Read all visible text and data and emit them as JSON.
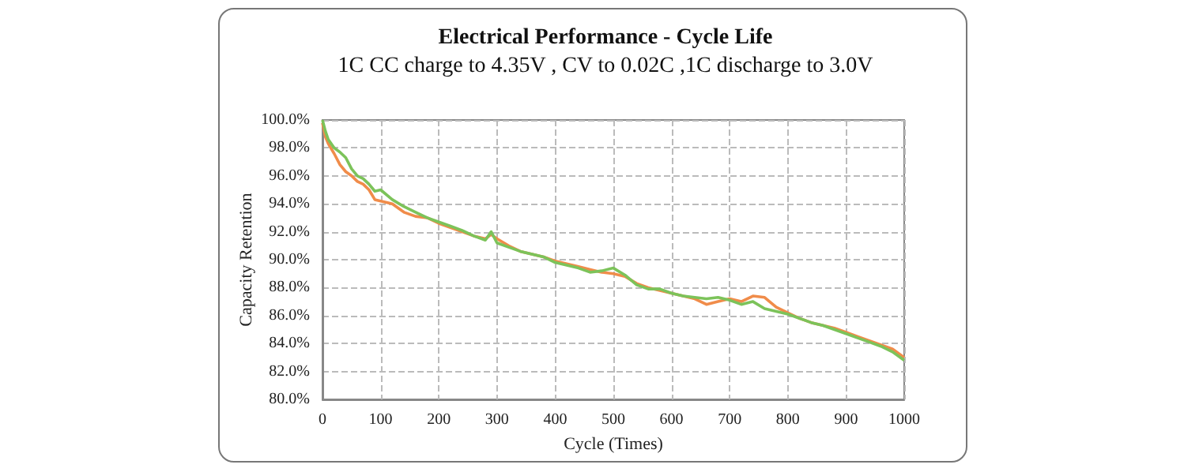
{
  "chart_data": {
    "type": "line",
    "title": "Electrical Performance - Cycle Life",
    "subtitle": "1C CC charge to 4.35V , CV to 0.02C ,1C discharge to 3.0V",
    "xlabel": "Cycle (Times)",
    "ylabel": "Capacity Retention",
    "x": [
      0,
      5,
      10,
      20,
      30,
      40,
      50,
      60,
      70,
      80,
      90,
      100,
      120,
      140,
      160,
      180,
      200,
      220,
      240,
      260,
      280,
      290,
      300,
      320,
      340,
      360,
      380,
      400,
      420,
      440,
      460,
      480,
      500,
      520,
      540,
      560,
      580,
      600,
      620,
      640,
      660,
      680,
      700,
      720,
      740,
      760,
      780,
      800,
      820,
      840,
      860,
      880,
      900,
      920,
      940,
      960,
      980,
      1000
    ],
    "series": [
      {
        "color": "#f08c4a",
        "values": [
          99.8,
          98.8,
          98.3,
          97.6,
          96.8,
          96.3,
          96.0,
          95.6,
          95.4,
          95.0,
          94.3,
          94.2,
          94.0,
          93.4,
          93.1,
          93.0,
          92.6,
          92.3,
          92.0,
          91.7,
          91.5,
          91.8,
          91.5,
          91.0,
          90.6,
          90.4,
          90.2,
          89.9,
          89.7,
          89.5,
          89.3,
          89.1,
          89.0,
          88.8,
          88.3,
          88.0,
          87.8,
          87.6,
          87.4,
          87.2,
          86.8,
          87.0,
          87.2,
          87.0,
          87.4,
          87.3,
          86.6,
          86.2,
          85.8,
          85.5,
          85.3,
          85.1,
          84.8,
          84.5,
          84.2,
          83.9,
          83.6,
          83.0
        ]
      },
      {
        "color": "#7cc35a",
        "values": [
          100.0,
          99.2,
          98.6,
          98.0,
          97.7,
          97.3,
          96.5,
          96.0,
          95.8,
          95.4,
          94.9,
          95.0,
          94.3,
          93.8,
          93.4,
          93.0,
          92.7,
          92.4,
          92.1,
          91.7,
          91.4,
          92.0,
          91.2,
          90.9,
          90.6,
          90.4,
          90.2,
          89.8,
          89.6,
          89.4,
          89.1,
          89.2,
          89.4,
          88.9,
          88.2,
          87.9,
          87.9,
          87.6,
          87.4,
          87.3,
          87.2,
          87.3,
          87.1,
          86.8,
          87.0,
          86.5,
          86.3,
          86.1,
          85.8,
          85.5,
          85.3,
          85.0,
          84.7,
          84.4,
          84.1,
          83.8,
          83.4,
          82.8
        ]
      }
    ],
    "xlim": [
      0,
      1000
    ],
    "xticks": [
      0,
      100,
      200,
      300,
      400,
      500,
      600,
      700,
      800,
      900,
      1000
    ],
    "ylim": [
      80,
      100
    ],
    "yticks": [
      {
        "value": 80,
        "label": "80.0%"
      },
      {
        "value": 82,
        "label": "82.0%"
      },
      {
        "value": 84,
        "label": "84.0%"
      },
      {
        "value": 86,
        "label": "86.0%"
      },
      {
        "value": 88,
        "label": "88.0%"
      },
      {
        "value": 90,
        "label": "90.0%"
      },
      {
        "value": 92,
        "label": "92.0%"
      },
      {
        "value": 94,
        "label": "94.0%"
      },
      {
        "value": 96,
        "label": "96.0%"
      },
      {
        "value": 98,
        "label": "98.0%"
      },
      {
        "value": 100,
        "label": "100.0%"
      }
    ],
    "grid": true,
    "marker": "none",
    "line_style": "solid"
  }
}
